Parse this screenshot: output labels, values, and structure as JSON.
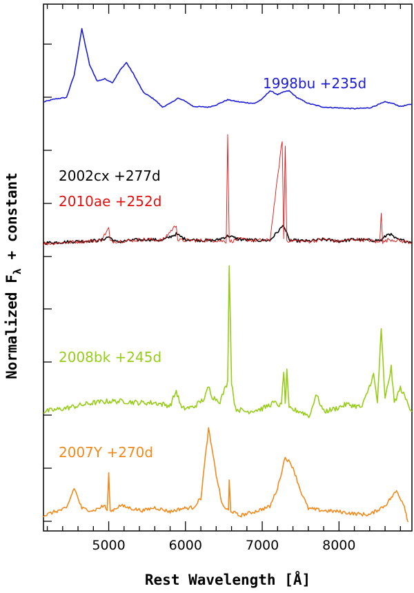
{
  "chart_data": {
    "type": "line",
    "title": "",
    "xlabel": "Rest Wavelength [Å]",
    "ylabel_main": "Normalized F",
    "ylabel_sub": "λ",
    "ylabel_tail": " + constant",
    "xlim": [
      4150,
      8950
    ],
    "x_ticks": [
      5000,
      6000,
      7000,
      8000
    ],
    "x_tick_labels": [
      "5000",
      "6000",
      "7000",
      "8000"
    ],
    "grid": false,
    "series": [
      {
        "name": "1998bu",
        "label": "1998bu  +235d",
        "color": "#1a1ad6",
        "baseline": 0.0,
        "points": [
          [
            4150,
            0.02
          ],
          [
            4300,
            0.06
          ],
          [
            4450,
            0.08
          ],
          [
            4550,
            0.38
          ],
          [
            4650,
            1.0
          ],
          [
            4750,
            0.52
          ],
          [
            4850,
            0.3
          ],
          [
            4950,
            0.33
          ],
          [
            5050,
            0.28
          ],
          [
            5150,
            0.45
          ],
          [
            5230,
            0.55
          ],
          [
            5320,
            0.4
          ],
          [
            5450,
            0.15
          ],
          [
            5600,
            0.05
          ],
          [
            5700,
            -0.05
          ],
          [
            5800,
            0.0
          ],
          [
            5900,
            0.07
          ],
          [
            6000,
            0.03
          ],
          [
            6100,
            -0.04
          ],
          [
            6300,
            -0.05
          ],
          [
            6400,
            -0.02
          ],
          [
            6550,
            0.05
          ],
          [
            6700,
            0.02
          ],
          [
            6900,
            0.0
          ],
          [
            7000,
            0.06
          ],
          [
            7100,
            0.17
          ],
          [
            7200,
            0.12
          ],
          [
            7300,
            0.16
          ],
          [
            7350,
            0.17
          ],
          [
            7450,
            0.08
          ],
          [
            7600,
            0.0
          ],
          [
            7800,
            -0.05
          ],
          [
            8000,
            -0.06
          ],
          [
            8200,
            -0.07
          ],
          [
            8400,
            -0.06
          ],
          [
            8600,
            0.02
          ],
          [
            8700,
            0.0
          ],
          [
            8800,
            -0.04
          ],
          [
            8950,
            -0.01
          ]
        ]
      },
      {
        "name": "2002cx",
        "label": "2002cx  +277d",
        "color": "#000000",
        "baseline": 0.0,
        "points": [
          [
            4150,
            0.02
          ],
          [
            4400,
            0.03
          ],
          [
            4650,
            0.04
          ],
          [
            4900,
            0.05
          ],
          [
            5000,
            0.09
          ],
          [
            5100,
            0.03
          ],
          [
            5300,
            0.05
          ],
          [
            5500,
            0.06
          ],
          [
            5700,
            0.05
          ],
          [
            5880,
            0.12
          ],
          [
            6000,
            0.06
          ],
          [
            6200,
            0.05
          ],
          [
            6400,
            0.05
          ],
          [
            6560,
            0.1
          ],
          [
            6700,
            0.06
          ],
          [
            6900,
            0.05
          ],
          [
            7100,
            0.05
          ],
          [
            7280,
            0.22
          ],
          [
            7350,
            0.05
          ],
          [
            7600,
            0.04
          ],
          [
            7800,
            0.06
          ],
          [
            8000,
            0.04
          ],
          [
            8200,
            0.06
          ],
          [
            8400,
            0.05
          ],
          [
            8550,
            0.05
          ],
          [
            8650,
            0.13
          ],
          [
            8750,
            0.06
          ],
          [
            8950,
            0.03
          ]
        ]
      },
      {
        "name": "2010ae",
        "label": "2010ae  +252d",
        "color": "#e01010",
        "baseline": 0.0,
        "points": [
          [
            4150,
            0.01
          ],
          [
            4400,
            0.02
          ],
          [
            4650,
            0.03
          ],
          [
            4900,
            0.04
          ],
          [
            5000,
            0.15
          ],
          [
            5020,
            0.03
          ],
          [
            5300,
            0.04
          ],
          [
            5500,
            0.05
          ],
          [
            5700,
            0.04
          ],
          [
            5880,
            0.18
          ],
          [
            5900,
            0.04
          ],
          [
            6200,
            0.04
          ],
          [
            6400,
            0.04
          ],
          [
            6530,
            0.03
          ],
          [
            6550,
            1.0
          ],
          [
            6570,
            0.03
          ],
          [
            6700,
            0.05
          ],
          [
            6900,
            0.04
          ],
          [
            7100,
            0.04
          ],
          [
            7260,
            0.95
          ],
          [
            7280,
            0.05
          ],
          [
            7300,
            0.9
          ],
          [
            7320,
            0.04
          ],
          [
            7600,
            0.03
          ],
          [
            7800,
            0.05
          ],
          [
            8000,
            0.03
          ],
          [
            8200,
            0.05
          ],
          [
            8400,
            0.04
          ],
          [
            8530,
            0.02
          ],
          [
            8550,
            0.3
          ],
          [
            8570,
            0.02
          ],
          [
            8650,
            0.05
          ],
          [
            8950,
            0.02
          ]
        ]
      },
      {
        "name": "2008bk",
        "label": "2008bk  +245d",
        "color": "#96cc16",
        "baseline": 0.0,
        "points": [
          [
            4150,
            0.0
          ],
          [
            4400,
            0.02
          ],
          [
            4600,
            0.04
          ],
          [
            4800,
            0.06
          ],
          [
            5000,
            0.07
          ],
          [
            5200,
            0.07
          ],
          [
            5400,
            0.06
          ],
          [
            5600,
            0.06
          ],
          [
            5800,
            0.04
          ],
          [
            5880,
            0.14
          ],
          [
            5950,
            0.02
          ],
          [
            6100,
            0.03
          ],
          [
            6250,
            0.09
          ],
          [
            6300,
            0.17
          ],
          [
            6350,
            0.1
          ],
          [
            6450,
            0.07
          ],
          [
            6550,
            0.2
          ],
          [
            6570,
            1.0
          ],
          [
            6600,
            0.2
          ],
          [
            6650,
            0.02
          ],
          [
            6800,
            0.0
          ],
          [
            7000,
            0.02
          ],
          [
            7150,
            0.06
          ],
          [
            7250,
            0.04
          ],
          [
            7280,
            0.28
          ],
          [
            7300,
            0.06
          ],
          [
            7320,
            0.27
          ],
          [
            7350,
            0.02
          ],
          [
            7500,
            0.0
          ],
          [
            7620,
            -0.03
          ],
          [
            7700,
            0.12
          ],
          [
            7800,
            0.0
          ],
          [
            7950,
            0.02
          ],
          [
            8100,
            0.05
          ],
          [
            8300,
            0.03
          ],
          [
            8450,
            0.25
          ],
          [
            8500,
            0.06
          ],
          [
            8550,
            0.55
          ],
          [
            8600,
            0.08
          ],
          [
            8680,
            0.3
          ],
          [
            8720,
            0.06
          ],
          [
            8800,
            0.16
          ],
          [
            8950,
            0.0
          ]
        ]
      },
      {
        "name": "2007Y",
        "label": "2007Y  +270d",
        "color": "#f08a1c",
        "baseline": 0.0,
        "points": [
          [
            4150,
            -0.02
          ],
          [
            4300,
            0.02
          ],
          [
            4450,
            0.05
          ],
          [
            4550,
            0.25
          ],
          [
            4650,
            0.05
          ],
          [
            4800,
            0.03
          ],
          [
            4950,
            0.08
          ],
          [
            4980,
            0.02
          ],
          [
            5000,
            0.38
          ],
          [
            5020,
            0.02
          ],
          [
            5150,
            0.08
          ],
          [
            5300,
            0.05
          ],
          [
            5450,
            0.03
          ],
          [
            5600,
            0.06
          ],
          [
            5800,
            0.02
          ],
          [
            5950,
            0.05
          ],
          [
            6100,
            0.06
          ],
          [
            6200,
            0.15
          ],
          [
            6300,
            0.82
          ],
          [
            6400,
            0.38
          ],
          [
            6480,
            0.08
          ],
          [
            6560,
            0.03
          ],
          [
            6570,
            0.32
          ],
          [
            6590,
            0.03
          ],
          [
            6700,
            -0.02
          ],
          [
            6900,
            0.02
          ],
          [
            7100,
            0.07
          ],
          [
            7200,
            0.25
          ],
          [
            7300,
            0.55
          ],
          [
            7400,
            0.45
          ],
          [
            7500,
            0.22
          ],
          [
            7600,
            0.05
          ],
          [
            7800,
            0.03
          ],
          [
            8000,
            0.02
          ],
          [
            8200,
            0.0
          ],
          [
            8400,
            -0.01
          ],
          [
            8600,
            0.08
          ],
          [
            8750,
            0.22
          ],
          [
            8850,
            0.08
          ],
          [
            8900,
            -0.08
          ]
        ]
      }
    ]
  }
}
